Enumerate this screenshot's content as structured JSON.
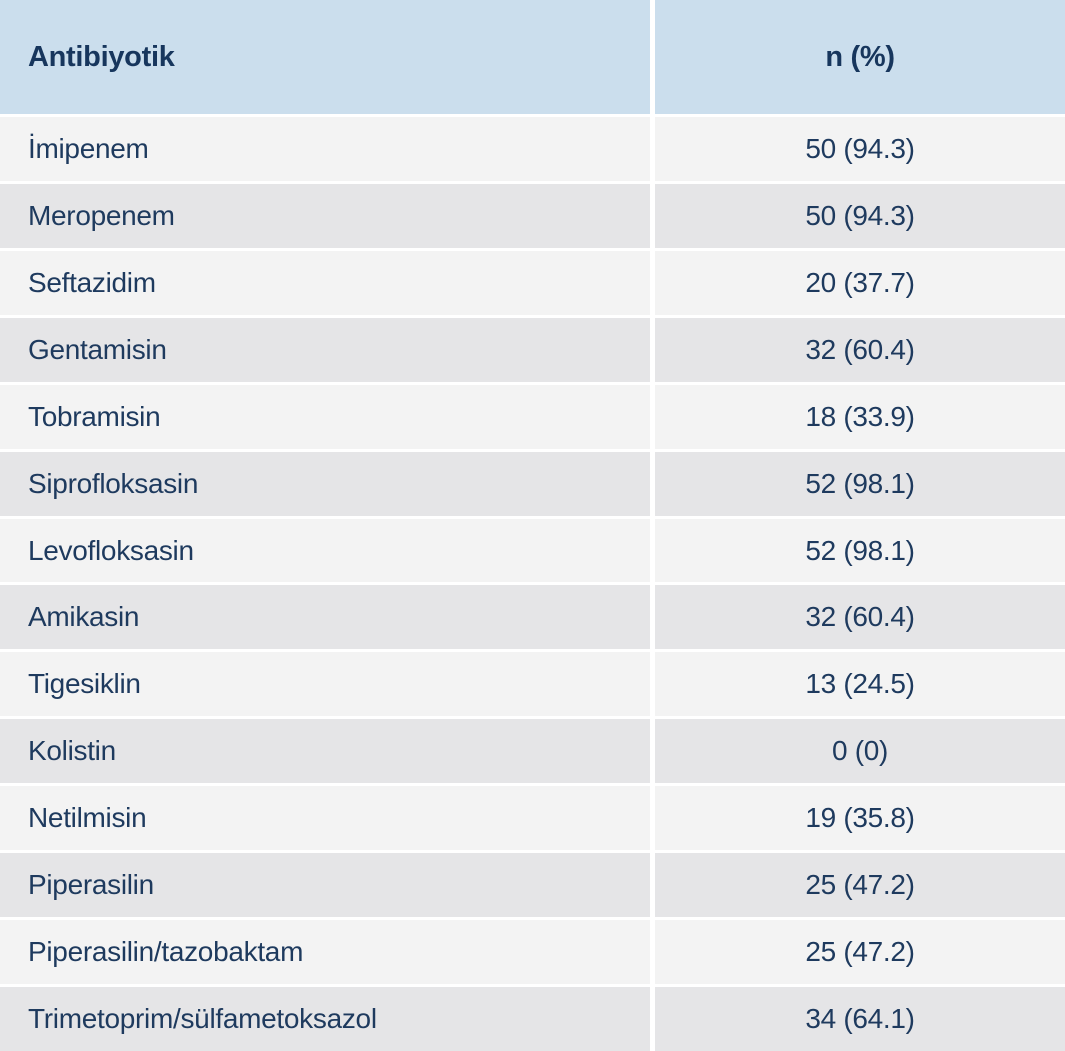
{
  "table": {
    "headers": [
      "Antibiyotik",
      "n (%)"
    ],
    "rows": [
      {
        "name": "İmipenem",
        "value": "50 (94.3)"
      },
      {
        "name": "Meropenem",
        "value": "50 (94.3)"
      },
      {
        "name": "Seftazidim",
        "value": "20 (37.7)"
      },
      {
        "name": "Gentamisin",
        "value": "32 (60.4)"
      },
      {
        "name": "Tobramisin",
        "value": "18 (33.9)"
      },
      {
        "name": "Siprofloksasin",
        "value": "52 (98.1)"
      },
      {
        "name": "Levofloksasin",
        "value": "52 (98.1)"
      },
      {
        "name": "Amikasin",
        "value": "32 (60.4)"
      },
      {
        "name": "Tigesiklin",
        "value": "13 (24.5)"
      },
      {
        "name": "Kolistin",
        "value": "0 (0)"
      },
      {
        "name": "Netilmisin",
        "value": "19 (35.8)"
      },
      {
        "name": "Piperasilin",
        "value": "25 (47.2)"
      },
      {
        "name": "Piperasilin/tazobaktam",
        "value": "25 (47.2)"
      },
      {
        "name": "Trimetoprim/sülfametoksazol",
        "value": "34 (64.1)"
      }
    ],
    "colors": {
      "header_bg": "#cbdeed",
      "header_text": "#17365d",
      "text": "#1e3a5e",
      "row_light_bg": "#f3f3f3",
      "row_dark_bg": "#e5e5e7",
      "gap_color": "#ffffff"
    }
  },
  "chart_data": {
    "type": "table",
    "title": "",
    "columns": [
      "Antibiyotik",
      "n (%)"
    ],
    "rows": [
      [
        "İmipenem",
        "50 (94.3)"
      ],
      [
        "Meropenem",
        "50 (94.3)"
      ],
      [
        "Seftazidim",
        "20 (37.7)"
      ],
      [
        "Gentamisin",
        "32 (60.4)"
      ],
      [
        "Tobramisin",
        "18 (33.9)"
      ],
      [
        "Siprofloksasin",
        "52 (98.1)"
      ],
      [
        "Levofloksasin",
        "52 (98.1)"
      ],
      [
        "Amikasin",
        "32 (60.4)"
      ],
      [
        "Tigesiklin",
        "13 (24.5)"
      ],
      [
        "Kolistin",
        "0 (0)"
      ],
      [
        "Netilmisin",
        "19 (35.8)"
      ],
      [
        "Piperasilin",
        "25 (47.2)"
      ],
      [
        "Piperasilin/tazobaktam",
        "25 (47.2)"
      ],
      [
        "Trimetoprim/sülfametoksazol",
        "34 (64.1)"
      ]
    ],
    "values": [
      {
        "antibiotic": "İmipenem",
        "n": 50,
        "percent": 94.3
      },
      {
        "antibiotic": "Meropenem",
        "n": 50,
        "percent": 94.3
      },
      {
        "antibiotic": "Seftazidim",
        "n": 20,
        "percent": 37.7
      },
      {
        "antibiotic": "Gentamisin",
        "n": 32,
        "percent": 60.4
      },
      {
        "antibiotic": "Tobramisin",
        "n": 18,
        "percent": 33.9
      },
      {
        "antibiotic": "Siprofloksasin",
        "n": 52,
        "percent": 98.1
      },
      {
        "antibiotic": "Levofloksasin",
        "n": 52,
        "percent": 98.1
      },
      {
        "antibiotic": "Amikasin",
        "n": 32,
        "percent": 60.4
      },
      {
        "antibiotic": "Tigesiklin",
        "n": 13,
        "percent": 24.5
      },
      {
        "antibiotic": "Kolistin",
        "n": 0,
        "percent": 0
      },
      {
        "antibiotic": "Netilmisin",
        "n": 19,
        "percent": 35.8
      },
      {
        "antibiotic": "Piperasilin",
        "n": 25,
        "percent": 47.2
      },
      {
        "antibiotic": "Piperasilin/tazobaktam",
        "n": 25,
        "percent": 47.2
      },
      {
        "antibiotic": "Trimetoprim/sülfametoksazol",
        "n": 34,
        "percent": 64.1
      }
    ]
  }
}
